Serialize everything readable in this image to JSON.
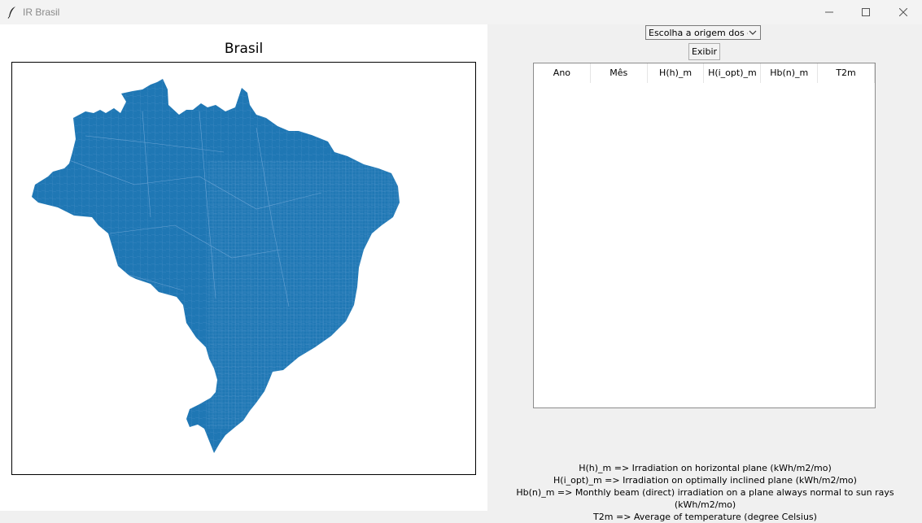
{
  "window": {
    "title": "IR Brasil",
    "icon": "feather-icon"
  },
  "figure": {
    "title": "Brasil",
    "map_color": "#1f77b4"
  },
  "controls": {
    "origin_select_value": "Escolha a origem dos d",
    "show_button": "Exibir"
  },
  "table": {
    "columns": [
      "Ano",
      "Mês",
      "H(h)_m",
      "H(i_opt)_m",
      "Hb(n)_m",
      "T2m"
    ],
    "rows": []
  },
  "legend": [
    "H(h)_m => Irradiation on horizontal plane (kWh/m2/mo)",
    "H(i_opt)_m => Irradiation on optimally inclined plane (kWh/m2/mo)",
    "Hb(n)_m => Monthly beam (direct) irradiation on a plane always normal to sun rays (kWh/m2/mo)",
    "T2m => Average of temperature (degree Celsius)"
  ]
}
